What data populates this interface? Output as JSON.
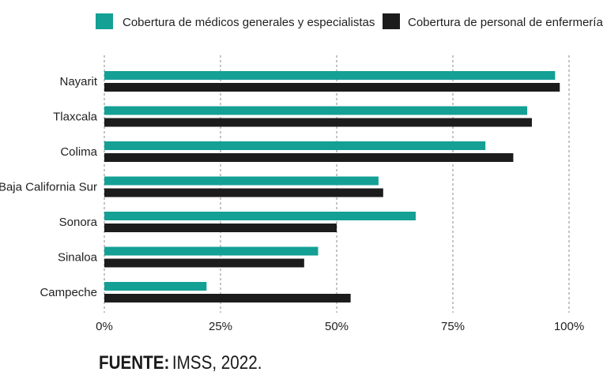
{
  "chart_data": {
    "type": "bar",
    "orientation": "horizontal",
    "categories": [
      "Nayarit",
      "Tlaxcala",
      "Colima",
      "Baja California Sur",
      "Sonora",
      "Sinaloa",
      "Campeche"
    ],
    "series": [
      {
        "name": "Cobertura de médicos generales y especialistas",
        "color": "#14a095",
        "values": [
          97,
          91,
          82,
          59,
          67,
          46,
          22
        ]
      },
      {
        "name": "Cobertura de personal de enfermería",
        "color": "#1c1c1c",
        "values": [
          98,
          92,
          88,
          60,
          50,
          43,
          53
        ]
      }
    ],
    "x_ticks": [
      "0%",
      "25%",
      "50%",
      "75%",
      "100%"
    ],
    "xlim": [
      0,
      100
    ],
    "grid": "vertical dashed",
    "legend_position": "top"
  },
  "source": {
    "label": "FUENTE:",
    "text": "IMSS, 2022."
  }
}
